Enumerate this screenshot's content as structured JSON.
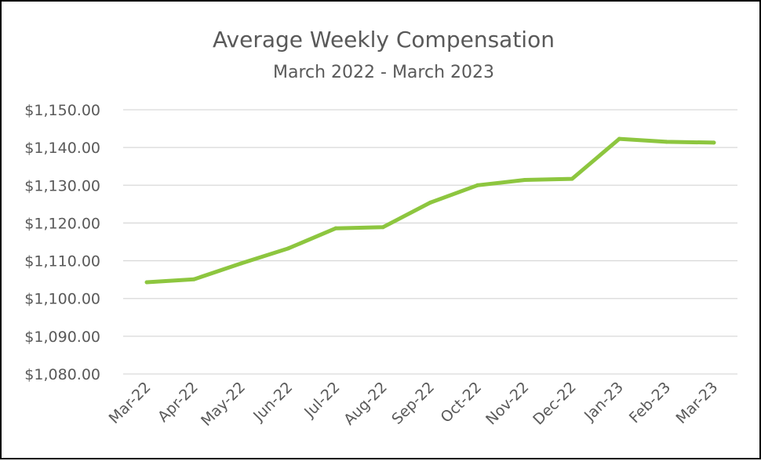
{
  "chart_data": {
    "type": "line",
    "title": "Average Weekly Compensation",
    "subtitle": "March 2022 - March 2023",
    "xlabel": "",
    "ylabel": "",
    "categories": [
      "Mar-22",
      "Apr-22",
      "May-22",
      "Jun-22",
      "Jul-22",
      "Aug-22",
      "Sep-22",
      "Oct-22",
      "Nov-22",
      "Dec-22",
      "Jan-23",
      "Feb-23",
      "Mar-23"
    ],
    "series": [
      {
        "values": [
          1104.3,
          1105.1,
          1109.3,
          1113.3,
          1118.6,
          1118.9,
          1125.4,
          1130.0,
          1131.4,
          1131.7,
          1142.3,
          1141.5,
          1141.3
        ],
        "color": "#8dc63f"
      }
    ],
    "ylim": [
      1080,
      1150
    ],
    "yticks": [
      1150,
      1140,
      1130,
      1120,
      1110,
      1100,
      1090,
      1080
    ],
    "ytick_labels": [
      "$1,150.00",
      "$1,140.00",
      "$1,130.00",
      "$1,120.00",
      "$1,110.00",
      "$1,100.00",
      "$1,090.00",
      "$1,080.00"
    ],
    "grid": true,
    "legend": "none"
  }
}
